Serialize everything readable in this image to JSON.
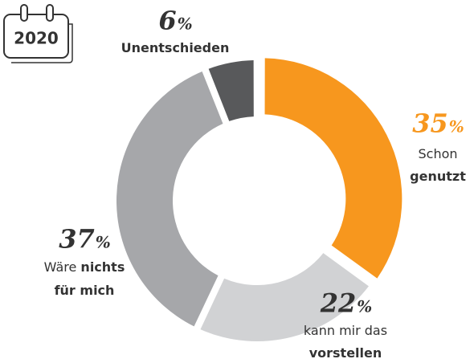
{
  "badge": "2020",
  "chart_data": {
    "type": "pie",
    "donut": true,
    "values": [
      35,
      22,
      37,
      6
    ],
    "unit": "%",
    "colors": [
      "#f7971e",
      "#d1d2d4",
      "#a6a7aa",
      "#58595b"
    ],
    "label_lines": [
      [
        [
          {
            "text": "Schon"
          }
        ],
        [
          {
            "text": "genutzt",
            "bold": true
          }
        ]
      ],
      [
        [
          {
            "text": "kann mir das"
          }
        ],
        [
          {
            "text": "vorstellen",
            "bold": true
          }
        ]
      ],
      [
        [
          {
            "text": "Wäre "
          },
          {
            "text": "nichts",
            "bold": true
          }
        ],
        [
          {
            "text": "für mich",
            "bold": true
          }
        ]
      ],
      [
        [
          {
            "text": "Unentschieden",
            "bold": true
          }
        ]
      ]
    ]
  }
}
